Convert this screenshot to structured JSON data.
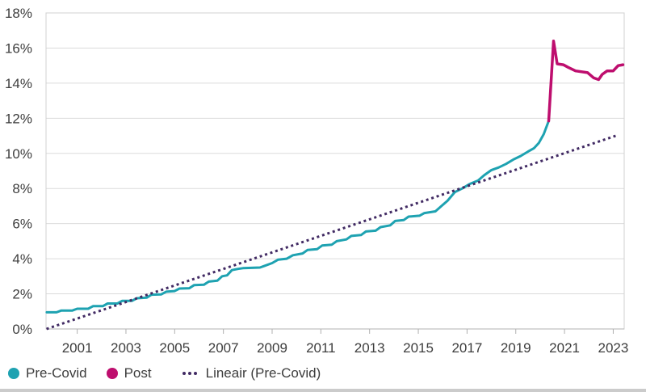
{
  "page": {
    "background": "#ffffff"
  },
  "chart_data": {
    "type": "line",
    "title": "",
    "xlabel": "",
    "ylabel": "",
    "grid": true,
    "legend_position": "bottom-left",
    "x_axis": {
      "range": [
        1999.72,
        2023.45
      ],
      "ticks": [
        {
          "v": 2001,
          "label": "2001"
        },
        {
          "v": 2003,
          "label": "2003"
        },
        {
          "v": 2005,
          "label": "2005"
        },
        {
          "v": 2007,
          "label": "2007"
        },
        {
          "v": 2009,
          "label": "2009"
        },
        {
          "v": 2011,
          "label": "2011"
        },
        {
          "v": 2013,
          "label": "2013"
        },
        {
          "v": 2015,
          "label": "2015"
        },
        {
          "v": 2017,
          "label": "2017"
        },
        {
          "v": 2019,
          "label": "2019"
        },
        {
          "v": 2021,
          "label": "2021"
        },
        {
          "v": 2023,
          "label": "2023"
        }
      ]
    },
    "y_axis": {
      "range": [
        0,
        18
      ],
      "ticks": [
        {
          "v": 0,
          "label": "0%"
        },
        {
          "v": 2,
          "label": "2%"
        },
        {
          "v": 4,
          "label": "4%"
        },
        {
          "v": 6,
          "label": "6%"
        },
        {
          "v": 8,
          "label": "8%"
        },
        {
          "v": 10,
          "label": "10%"
        },
        {
          "v": 12,
          "label": "12%"
        },
        {
          "v": 14,
          "label": "14%"
        },
        {
          "v": 16,
          "label": "16%"
        },
        {
          "v": 18,
          "label": "18%"
        }
      ]
    },
    "colors": {
      "grid": "#dbdbdb",
      "border": "#d0d0d0",
      "axis_line": "#b0b0b0",
      "text": "#3d3d3d",
      "teal": "#1ea2b1",
      "magenta": "#be0e6e",
      "purple": "#412a63"
    },
    "series": [
      {
        "id": "pre-covid-line",
        "name": "Pre-Covid",
        "color": "#1ea2b1",
        "style": "solid",
        "width": 3,
        "points": [
          [
            1999.75,
            0.95
          ],
          [
            2000.15,
            0.95
          ],
          [
            2000.35,
            1.05
          ],
          [
            2000.8,
            1.05
          ],
          [
            2001.0,
            1.15
          ],
          [
            2001.45,
            1.15
          ],
          [
            2001.65,
            1.3
          ],
          [
            2002.05,
            1.3
          ],
          [
            2002.25,
            1.45
          ],
          [
            2002.65,
            1.45
          ],
          [
            2002.85,
            1.6
          ],
          [
            2003.25,
            1.6
          ],
          [
            2003.45,
            1.75
          ],
          [
            2003.85,
            1.78
          ],
          [
            2004.05,
            1.95
          ],
          [
            2004.45,
            1.97
          ],
          [
            2004.65,
            2.12
          ],
          [
            2005.0,
            2.16
          ],
          [
            2005.2,
            2.3
          ],
          [
            2005.6,
            2.32
          ],
          [
            2005.8,
            2.5
          ],
          [
            2006.2,
            2.52
          ],
          [
            2006.4,
            2.7
          ],
          [
            2006.75,
            2.75
          ],
          [
            2006.95,
            3.0
          ],
          [
            2007.15,
            3.05
          ],
          [
            2007.35,
            3.35
          ],
          [
            2007.6,
            3.42
          ],
          [
            2007.8,
            3.46
          ],
          [
            2008.5,
            3.5
          ],
          [
            2008.7,
            3.6
          ],
          [
            2009.0,
            3.75
          ],
          [
            2009.25,
            3.95
          ],
          [
            2009.6,
            4.0
          ],
          [
            2009.85,
            4.2
          ],
          [
            2010.25,
            4.3
          ],
          [
            2010.45,
            4.5
          ],
          [
            2010.85,
            4.55
          ],
          [
            2011.05,
            4.75
          ],
          [
            2011.45,
            4.8
          ],
          [
            2011.65,
            5.0
          ],
          [
            2012.05,
            5.1
          ],
          [
            2012.25,
            5.3
          ],
          [
            2012.65,
            5.35
          ],
          [
            2012.85,
            5.55
          ],
          [
            2013.25,
            5.6
          ],
          [
            2013.45,
            5.8
          ],
          [
            2013.85,
            5.9
          ],
          [
            2014.05,
            6.15
          ],
          [
            2014.4,
            6.2
          ],
          [
            2014.6,
            6.4
          ],
          [
            2015.05,
            6.45
          ],
          [
            2015.25,
            6.6
          ],
          [
            2015.7,
            6.7
          ],
          [
            2015.95,
            7.0
          ],
          [
            2016.2,
            7.3
          ],
          [
            2016.5,
            7.8
          ],
          [
            2016.8,
            8.0
          ],
          [
            2017.1,
            8.25
          ],
          [
            2017.45,
            8.45
          ],
          [
            2017.7,
            8.75
          ],
          [
            2018.0,
            9.05
          ],
          [
            2018.3,
            9.2
          ],
          [
            2018.6,
            9.4
          ],
          [
            2018.9,
            9.65
          ],
          [
            2019.2,
            9.85
          ],
          [
            2019.5,
            10.1
          ],
          [
            2019.75,
            10.3
          ],
          [
            2019.95,
            10.6
          ],
          [
            2020.15,
            11.1
          ],
          [
            2020.35,
            11.85
          ]
        ]
      },
      {
        "id": "post-line",
        "name": "Post",
        "color": "#be0e6e",
        "style": "solid",
        "width": 3.5,
        "points": [
          [
            2020.35,
            11.85
          ],
          [
            2020.55,
            16.4
          ],
          [
            2020.7,
            15.1
          ],
          [
            2020.95,
            15.05
          ],
          [
            2021.15,
            14.9
          ],
          [
            2021.45,
            14.7
          ],
          [
            2021.95,
            14.6
          ],
          [
            2022.2,
            14.3
          ],
          [
            2022.4,
            14.2
          ],
          [
            2022.55,
            14.5
          ],
          [
            2022.75,
            14.7
          ],
          [
            2023.0,
            14.7
          ],
          [
            2023.2,
            15.0
          ],
          [
            2023.4,
            15.05
          ]
        ]
      },
      {
        "id": "linear-trend-line",
        "name": "Lineair (Pre-Covid)",
        "color": "#412a63",
        "style": "dotted",
        "width": 3,
        "points": [
          [
            1999.74,
            0.0
          ],
          [
            2023.2,
            11.05
          ]
        ]
      }
    ]
  },
  "legend": {
    "items": [
      {
        "label": "Pre-Covid",
        "marker": "dot",
        "color": "#1ea2b1"
      },
      {
        "label": "Post",
        "marker": "dot",
        "color": "#be0e6e"
      },
      {
        "label": "Lineair (Pre-Covid)",
        "marker": "dotted-line",
        "color": "#412a63"
      }
    ]
  }
}
